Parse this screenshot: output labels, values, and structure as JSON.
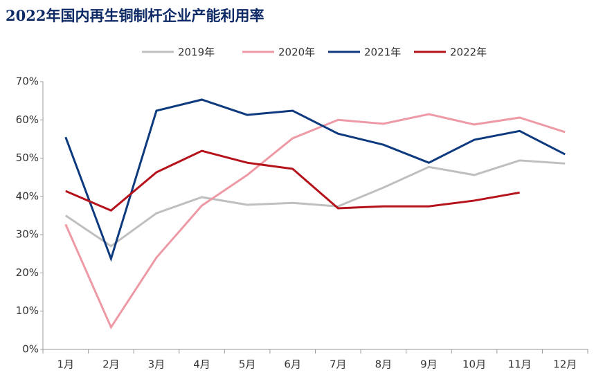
{
  "chart_data": {
    "type": "line",
    "title": "2022年国内再生铜制杆企业产能利用率",
    "categories": [
      "1月",
      "2月",
      "3月",
      "4月",
      "5月",
      "6月",
      "7月",
      "8月",
      "9月",
      "10月",
      "11月",
      "12月"
    ],
    "series": [
      {
        "name": "2019年",
        "color": "#bfbfbf",
        "values": [
          35,
          27,
          35.6,
          39.8,
          37.8,
          38.3,
          37.4,
          42.3,
          47.7,
          45.6,
          49.4,
          48.6
        ]
      },
      {
        "name": "2020年",
        "color": "#ee9aa6",
        "values": [
          32.7,
          5.8,
          24,
          37.6,
          45.6,
          55.2,
          60,
          59,
          61.5,
          58.8,
          60.6,
          56.8
        ]
      },
      {
        "name": "2021年",
        "color": "#0d3a7e",
        "values": [
          55.5,
          23.7,
          62.4,
          65.3,
          61.3,
          62.4,
          56.4,
          53.5,
          48.8,
          54.8,
          57.1,
          51
        ]
      },
      {
        "name": "2022年",
        "color": "#b5121b",
        "values": [
          41.4,
          36.3,
          46.3,
          51.9,
          48.8,
          47.2,
          36.9,
          37.4,
          37.4,
          38.9,
          41,
          null
        ]
      }
    ],
    "ylim": [
      0,
      70
    ],
    "yticks": [
      {
        "value": 0,
        "label": "0%"
      },
      {
        "value": 10,
        "label": "10%"
      },
      {
        "value": 20,
        "label": "20%"
      },
      {
        "value": 30,
        "label": "30%"
      },
      {
        "value": 40,
        "label": "40%"
      },
      {
        "value": 50,
        "label": "50%"
      },
      {
        "value": 60,
        "label": "60%"
      },
      {
        "value": 70,
        "label": "70%"
      }
    ],
    "legend": "top"
  }
}
